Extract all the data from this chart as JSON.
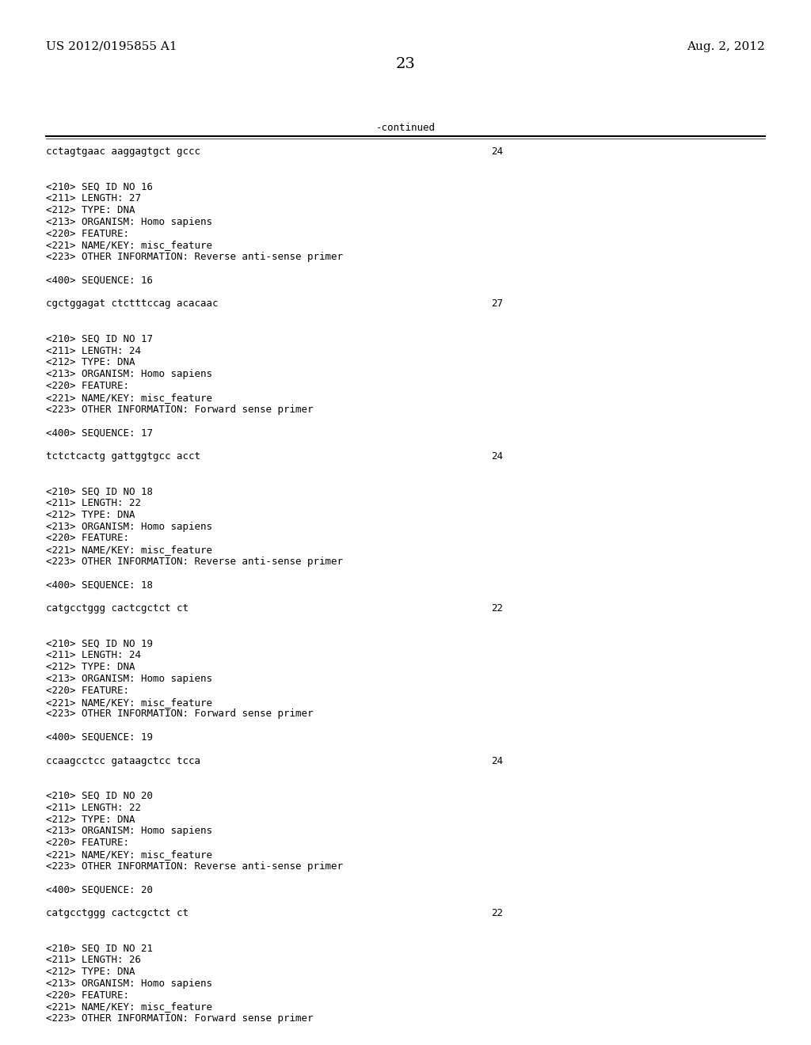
{
  "background_color": "#ffffff",
  "header_left": "US 2012/0195855 A1",
  "header_right": "Aug. 2, 2012",
  "page_number": "23",
  "continued_text": "-continued",
  "line_color": "#000000",
  "font_size_header": 11,
  "font_size_page_num": 14,
  "font_size_body": 9.0,
  "content_lines": [
    {
      "text": "cctagtgaac aaggagtgct gccc",
      "number": "24"
    },
    {
      "text": "",
      "number": ""
    },
    {
      "text": "",
      "number": ""
    },
    {
      "text": "<210> SEQ ID NO 16",
      "number": ""
    },
    {
      "text": "<211> LENGTH: 27",
      "number": ""
    },
    {
      "text": "<212> TYPE: DNA",
      "number": ""
    },
    {
      "text": "<213> ORGANISM: Homo sapiens",
      "number": ""
    },
    {
      "text": "<220> FEATURE:",
      "number": ""
    },
    {
      "text": "<221> NAME/KEY: misc_feature",
      "number": ""
    },
    {
      "text": "<223> OTHER INFORMATION: Reverse anti-sense primer",
      "number": ""
    },
    {
      "text": "",
      "number": ""
    },
    {
      "text": "<400> SEQUENCE: 16",
      "number": ""
    },
    {
      "text": "",
      "number": ""
    },
    {
      "text": "cgctggagat ctctttccag acacaac",
      "number": "27"
    },
    {
      "text": "",
      "number": ""
    },
    {
      "text": "",
      "number": ""
    },
    {
      "text": "<210> SEQ ID NO 17",
      "number": ""
    },
    {
      "text": "<211> LENGTH: 24",
      "number": ""
    },
    {
      "text": "<212> TYPE: DNA",
      "number": ""
    },
    {
      "text": "<213> ORGANISM: Homo sapiens",
      "number": ""
    },
    {
      "text": "<220> FEATURE:",
      "number": ""
    },
    {
      "text": "<221> NAME/KEY: misc_feature",
      "number": ""
    },
    {
      "text": "<223> OTHER INFORMATION: Forward sense primer",
      "number": ""
    },
    {
      "text": "",
      "number": ""
    },
    {
      "text": "<400> SEQUENCE: 17",
      "number": ""
    },
    {
      "text": "",
      "number": ""
    },
    {
      "text": "tctctcactg gattggtgcc acct",
      "number": "24"
    },
    {
      "text": "",
      "number": ""
    },
    {
      "text": "",
      "number": ""
    },
    {
      "text": "<210> SEQ ID NO 18",
      "number": ""
    },
    {
      "text": "<211> LENGTH: 22",
      "number": ""
    },
    {
      "text": "<212> TYPE: DNA",
      "number": ""
    },
    {
      "text": "<213> ORGANISM: Homo sapiens",
      "number": ""
    },
    {
      "text": "<220> FEATURE:",
      "number": ""
    },
    {
      "text": "<221> NAME/KEY: misc_feature",
      "number": ""
    },
    {
      "text": "<223> OTHER INFORMATION: Reverse anti-sense primer",
      "number": ""
    },
    {
      "text": "",
      "number": ""
    },
    {
      "text": "<400> SEQUENCE: 18",
      "number": ""
    },
    {
      "text": "",
      "number": ""
    },
    {
      "text": "catgcctggg cactcgctct ct",
      "number": "22"
    },
    {
      "text": "",
      "number": ""
    },
    {
      "text": "",
      "number": ""
    },
    {
      "text": "<210> SEQ ID NO 19",
      "number": ""
    },
    {
      "text": "<211> LENGTH: 24",
      "number": ""
    },
    {
      "text": "<212> TYPE: DNA",
      "number": ""
    },
    {
      "text": "<213> ORGANISM: Homo sapiens",
      "number": ""
    },
    {
      "text": "<220> FEATURE:",
      "number": ""
    },
    {
      "text": "<221> NAME/KEY: misc_feature",
      "number": ""
    },
    {
      "text": "<223> OTHER INFORMATION: Forward sense primer",
      "number": ""
    },
    {
      "text": "",
      "number": ""
    },
    {
      "text": "<400> SEQUENCE: 19",
      "number": ""
    },
    {
      "text": "",
      "number": ""
    },
    {
      "text": "ccaagcctcc gataagctcc tcca",
      "number": "24"
    },
    {
      "text": "",
      "number": ""
    },
    {
      "text": "",
      "number": ""
    },
    {
      "text": "<210> SEQ ID NO 20",
      "number": ""
    },
    {
      "text": "<211> LENGTH: 22",
      "number": ""
    },
    {
      "text": "<212> TYPE: DNA",
      "number": ""
    },
    {
      "text": "<213> ORGANISM: Homo sapiens",
      "number": ""
    },
    {
      "text": "<220> FEATURE:",
      "number": ""
    },
    {
      "text": "<221> NAME/KEY: misc_feature",
      "number": ""
    },
    {
      "text": "<223> OTHER INFORMATION: Reverse anti-sense primer",
      "number": ""
    },
    {
      "text": "",
      "number": ""
    },
    {
      "text": "<400> SEQUENCE: 20",
      "number": ""
    },
    {
      "text": "",
      "number": ""
    },
    {
      "text": "catgcctggg cactcgctct ct",
      "number": "22"
    },
    {
      "text": "",
      "number": ""
    },
    {
      "text": "",
      "number": ""
    },
    {
      "text": "<210> SEQ ID NO 21",
      "number": ""
    },
    {
      "text": "<211> LENGTH: 26",
      "number": ""
    },
    {
      "text": "<212> TYPE: DNA",
      "number": ""
    },
    {
      "text": "<213> ORGANISM: Homo sapiens",
      "number": ""
    },
    {
      "text": "<220> FEATURE:",
      "number": ""
    },
    {
      "text": "<221> NAME/KEY: misc_feature",
      "number": ""
    },
    {
      "text": "<223> OTHER INFORMATION: Forward sense primer",
      "number": ""
    }
  ]
}
